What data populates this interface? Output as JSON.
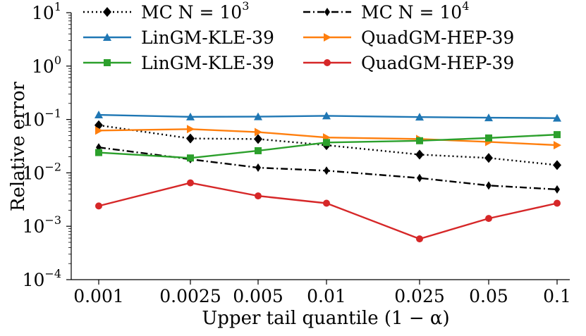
{
  "chart_data": {
    "type": "line",
    "title": "",
    "xlabel": "Upper tail quantile (1 − α)",
    "ylabel": "Relative error",
    "yscale": "log",
    "ylim": [
      0.0001,
      10
    ],
    "grid": false,
    "legend_position": "top",
    "categories": [
      "0.001",
      "0.0025",
      "0.005",
      "0.01",
      "0.025",
      "0.05",
      "0.1"
    ],
    "x": [
      0.001,
      0.0025,
      0.005,
      0.01,
      0.025,
      0.05,
      0.1
    ],
    "yticks": [
      {
        "value": 0.0001,
        "base": "10",
        "exp": "−4"
      },
      {
        "value": 0.001,
        "base": "10",
        "exp": "−3"
      },
      {
        "value": 0.01,
        "base": "10",
        "exp": "−2"
      },
      {
        "value": 0.1,
        "base": "10",
        "exp": "−1"
      },
      {
        "value": 1,
        "base": "10",
        "exp": "0"
      },
      {
        "value": 10,
        "base": "10",
        "exp": "1"
      }
    ],
    "series": [
      {
        "name": "MC N = 10^3",
        "label_main": "MC N = 10",
        "label_exp": "3",
        "color": "#000000",
        "dash": "dotted",
        "marker": "diamond",
        "values": [
          0.078,
          0.044,
          0.043,
          0.033,
          0.022,
          0.019,
          0.014
        ]
      },
      {
        "name": "MC N = 10^4",
        "label_main": "MC N = 10",
        "label_exp": "4",
        "color": "#000000",
        "dash": "dashdot",
        "marker": "thin_diamond",
        "values": [
          0.03,
          0.018,
          0.0125,
          0.011,
          0.008,
          0.0058,
          0.0049
        ]
      },
      {
        "name": "LinGM-KLE-39",
        "label_main": "LinGM-KLE-39",
        "label_exp": "",
        "color": "#1f77b4",
        "dash": "solid",
        "marker": "triangle_up",
        "values": [
          0.122,
          0.112,
          0.113,
          0.117,
          0.111,
          0.108,
          0.106
        ]
      },
      {
        "name": "QuadGM-HEP-39",
        "label_main": "QuadGM-HEP-39",
        "label_exp": "",
        "color": "#ff7f0e",
        "dash": "solid",
        "marker": "triangle_right",
        "values": [
          0.062,
          0.066,
          0.058,
          0.046,
          0.043,
          0.038,
          0.033
        ]
      },
      {
        "name": "LinGM-KLE-39",
        "label_main": "LinGM-KLE-39",
        "label_exp": "",
        "color": "#2ca02c",
        "dash": "solid",
        "marker": "square",
        "values": [
          0.024,
          0.019,
          0.026,
          0.037,
          0.04,
          0.045,
          0.052
        ]
      },
      {
        "name": "QuadGM-HEP-39",
        "label_main": "QuadGM-HEP-39",
        "label_exp": "",
        "color": "#d62728",
        "dash": "solid",
        "marker": "circle",
        "values": [
          0.0024,
          0.0065,
          0.0037,
          0.0027,
          0.00058,
          0.0014,
          0.0027
        ]
      }
    ]
  }
}
